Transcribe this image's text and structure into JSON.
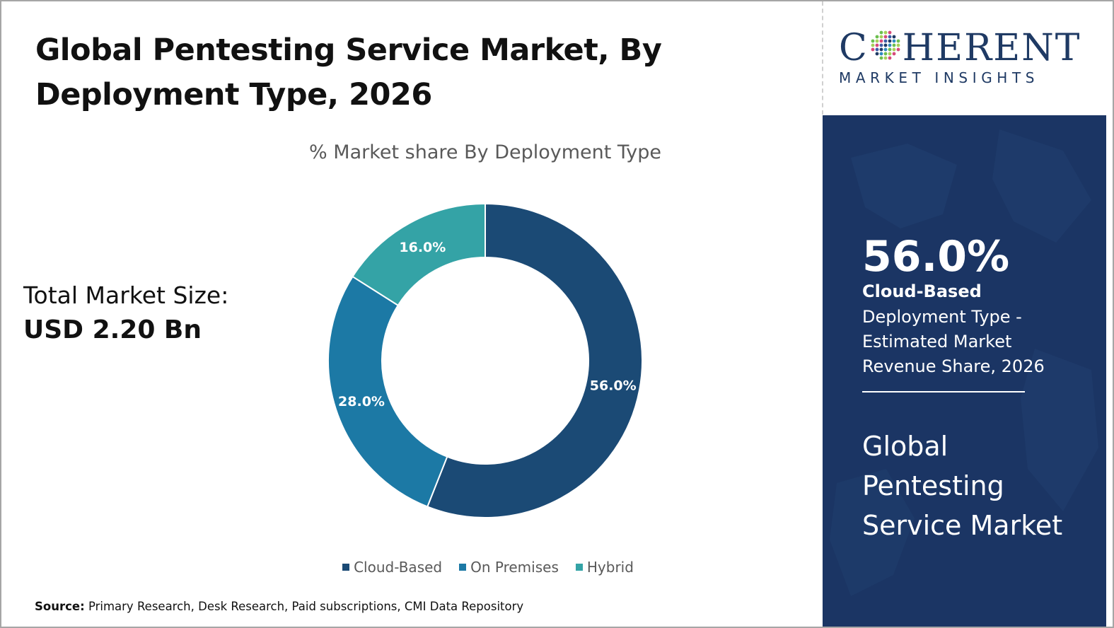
{
  "title_line1": "Global Pentesting Service Market, By",
  "title_line2": "Deployment Type, 2026",
  "total_market": {
    "label": "Total Market Size:",
    "value": "USD 2.20 Bn"
  },
  "chart_data": {
    "type": "pie",
    "donut": true,
    "title": "% Market share By Deployment Type",
    "categories": [
      "Cloud-Based",
      "On Premises",
      "Hybrid"
    ],
    "values": [
      56.0,
      28.0,
      16.0
    ],
    "labels": [
      "56.0%",
      "28.0%",
      "16.0%"
    ],
    "colors": [
      "#1b4a75",
      "#1c79a5",
      "#34a3a6"
    ],
    "legend_position": "bottom",
    "start_angle": "12 o'clock, clockwise"
  },
  "source": {
    "label": "Source:",
    "text": "Primary Research, Desk Research, Paid subscriptions, CMI Data Repository"
  },
  "logo": {
    "top_left": "C",
    "top_right": "HERENT",
    "bottom": "MARKET INSIGHTS"
  },
  "side_panel": {
    "percent": "56.0%",
    "segment": "Cloud-Based",
    "description": "Deployment Type - Estimated Market Revenue Share, 2026",
    "market_line1": "Global",
    "market_line2": "Pentesting",
    "market_line3": "Service Market",
    "background_color": "#1b3564"
  }
}
